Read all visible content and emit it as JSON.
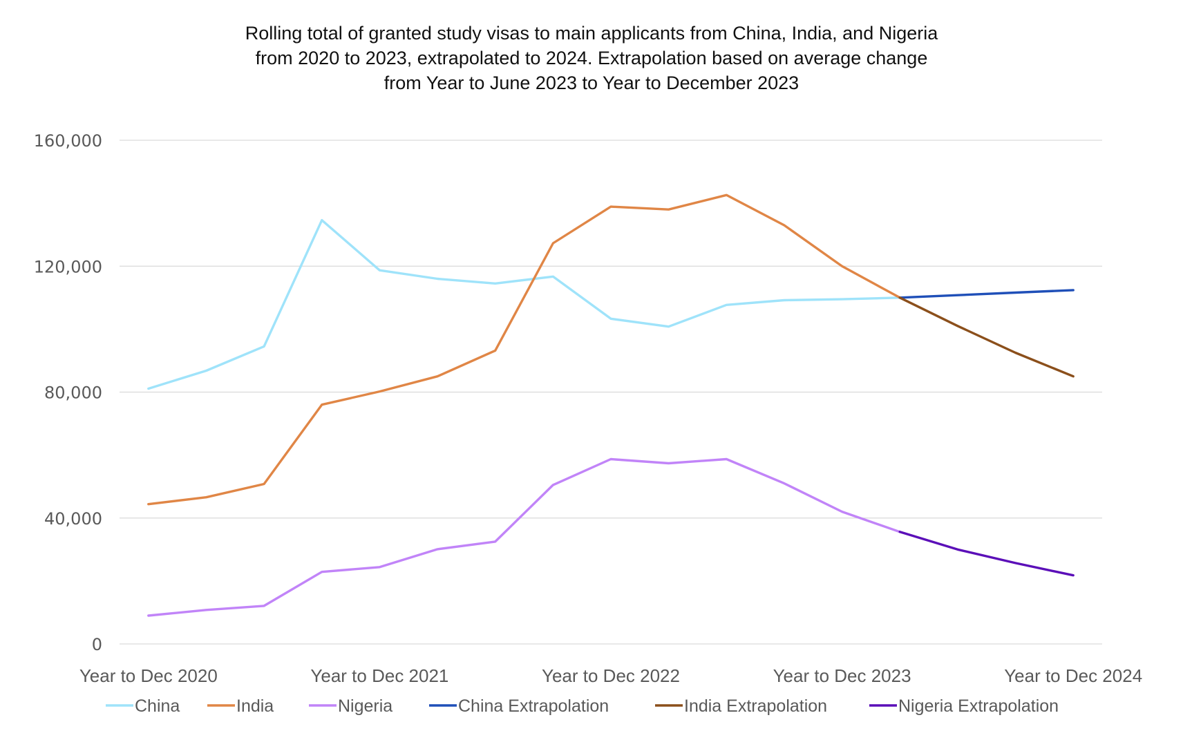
{
  "chart_data": {
    "type": "line",
    "title_lines": [
      "Rolling total of granted study visas to main applicants from China, India, and Nigeria",
      "from 2020 to 2023, extrapolated to 2024. Extrapolation based on average change",
      "from Year to June 2023 to Year to December 2023"
    ],
    "xlabel": "",
    "ylabel": "",
    "ylim": [
      0,
      160000
    ],
    "yticks": [
      0,
      40000,
      80000,
      120000,
      160000
    ],
    "ytick_labels": [
      "0",
      "40,000",
      "80,000",
      "120,000",
      "160,000"
    ],
    "x_count": 17,
    "xtick_positions": [
      0,
      4,
      8,
      12,
      16
    ],
    "xtick_labels": [
      "Year to Dec 2020",
      "Year to Dec 2021",
      "Year to Dec 2022",
      "Year to Dec 2023",
      "Year to Dec 2024"
    ],
    "grid": true,
    "legend_position": "bottom",
    "series": [
      {
        "name": "China",
        "color": "#9fe3fa",
        "start": 0,
        "values": [
          81100,
          86800,
          94500,
          134600,
          118700,
          116000,
          114500,
          116700,
          103300,
          100800,
          107700,
          109200,
          109500,
          110000
        ]
      },
      {
        "name": "India",
        "color": "#e08646",
        "start": 0,
        "values": [
          44400,
          46600,
          50800,
          76000,
          80200,
          85000,
          93200,
          127300,
          138900,
          138000,
          142600,
          133000,
          120000,
          110000
        ]
      },
      {
        "name": "Nigeria",
        "color": "#c184f8",
        "start": 0,
        "values": [
          9000,
          10800,
          12100,
          22900,
          24400,
          30100,
          32500,
          50500,
          58700,
          57400,
          58700,
          51000,
          42000,
          35600
        ]
      },
      {
        "name": "China Extrapolation",
        "color": "#1f4fb8",
        "start": 13,
        "values": [
          110000,
          110800,
          111600,
          112400
        ]
      },
      {
        "name": "India Extrapolation",
        "color": "#8b4f1b",
        "start": 13,
        "values": [
          110000,
          101000,
          92500,
          85000
        ]
      },
      {
        "name": "Nigeria Extrapolation",
        "color": "#5b0fb8",
        "start": 13,
        "values": [
          35600,
          30000,
          25700,
          21800
        ]
      }
    ]
  }
}
